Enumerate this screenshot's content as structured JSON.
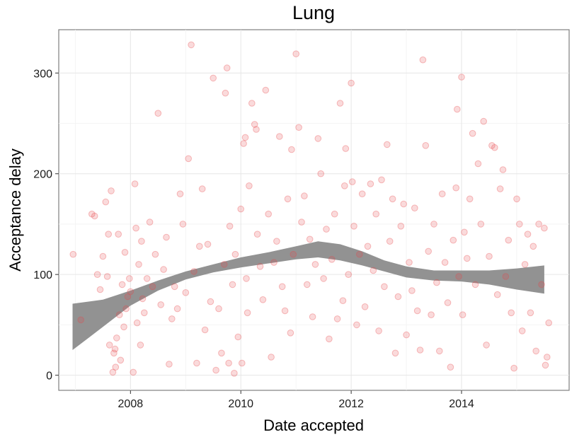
{
  "chart_data": {
    "type": "scatter",
    "title": "Lung",
    "xlabel": "Date accepted",
    "ylabel": "Acceptance delay",
    "xlim": [
      2006.7,
      2015.95
    ],
    "ylim": [
      -15,
      343
    ],
    "x_ticks": [
      2008,
      2010,
      2012,
      2014
    ],
    "y_ticks": [
      0,
      100,
      200,
      300
    ],
    "grid": true,
    "legend": "none",
    "point_color": "#e8474b",
    "band_color": "#8c8c8c",
    "smooth": {
      "x": [
        2006.95,
        2007.5,
        2008.0,
        2008.5,
        2009.0,
        2009.5,
        2010.0,
        2010.5,
        2011.0,
        2011.4,
        2011.8,
        2012.2,
        2012.6,
        2013.0,
        2013.5,
        2014.0,
        2014.5,
        2015.0,
        2015.5
      ],
      "lower": [
        25,
        48,
        69,
        84,
        95,
        102,
        107,
        111,
        115,
        117,
        114,
        109,
        103,
        97,
        94,
        93,
        90,
        85,
        81
      ],
      "upper": [
        71,
        75,
        84,
        94,
        103,
        110,
        117,
        122,
        128,
        133,
        130,
        123,
        114,
        108,
        104,
        104,
        104,
        106,
        109
      ]
    },
    "points": [
      [
        2006.96,
        120
      ],
      [
        2007.1,
        55
      ],
      [
        2007.3,
        160
      ],
      [
        2007.35,
        158
      ],
      [
        2007.4,
        100
      ],
      [
        2007.45,
        85
      ],
      [
        2007.5,
        118
      ],
      [
        2007.55,
        172
      ],
      [
        2007.58,
        98
      ],
      [
        2007.6,
        140
      ],
      [
        2007.62,
        30
      ],
      [
        2007.65,
        183
      ],
      [
        2007.68,
        3
      ],
      [
        2007.7,
        22
      ],
      [
        2007.72,
        26
      ],
      [
        2007.73,
        8
      ],
      [
        2007.75,
        37
      ],
      [
        2007.78,
        140
      ],
      [
        2007.8,
        60
      ],
      [
        2007.82,
        15
      ],
      [
        2007.85,
        90
      ],
      [
        2007.88,
        48
      ],
      [
        2007.9,
        122
      ],
      [
        2007.92,
        66
      ],
      [
        2007.95,
        78
      ],
      [
        2007.98,
        96
      ],
      [
        2008.0,
        83
      ],
      [
        2008.05,
        3
      ],
      [
        2008.08,
        190
      ],
      [
        2008.1,
        146
      ],
      [
        2008.12,
        52
      ],
      [
        2008.15,
        110
      ],
      [
        2008.18,
        30
      ],
      [
        2008.2,
        133
      ],
      [
        2008.22,
        76
      ],
      [
        2008.25,
        62
      ],
      [
        2008.3,
        96
      ],
      [
        2008.35,
        152
      ],
      [
        2008.4,
        88
      ],
      [
        2008.45,
        120
      ],
      [
        2008.5,
        260
      ],
      [
        2008.55,
        70
      ],
      [
        2008.6,
        105
      ],
      [
        2008.65,
        137
      ],
      [
        2008.7,
        11
      ],
      [
        2008.75,
        56
      ],
      [
        2008.8,
        88
      ],
      [
        2008.85,
        66
      ],
      [
        2008.9,
        180
      ],
      [
        2008.95,
        150
      ],
      [
        2009.0,
        82
      ],
      [
        2009.05,
        215
      ],
      [
        2009.1,
        328
      ],
      [
        2009.15,
        103
      ],
      [
        2009.2,
        12
      ],
      [
        2009.25,
        128
      ],
      [
        2009.3,
        185
      ],
      [
        2009.35,
        45
      ],
      [
        2009.4,
        130
      ],
      [
        2009.45,
        73
      ],
      [
        2009.5,
        295
      ],
      [
        2009.55,
        5
      ],
      [
        2009.6,
        66
      ],
      [
        2009.65,
        22
      ],
      [
        2009.7,
        110
      ],
      [
        2009.72,
        280
      ],
      [
        2009.75,
        305
      ],
      [
        2009.78,
        12
      ],
      [
        2009.8,
        148
      ],
      [
        2009.85,
        90
      ],
      [
        2009.88,
        2
      ],
      [
        2009.9,
        120
      ],
      [
        2009.95,
        38
      ],
      [
        2010.0,
        165
      ],
      [
        2010.02,
        12
      ],
      [
        2010.05,
        230
      ],
      [
        2010.08,
        236
      ],
      [
        2010.1,
        96
      ],
      [
        2010.12,
        62
      ],
      [
        2010.15,
        188
      ],
      [
        2010.2,
        270
      ],
      [
        2010.25,
        249
      ],
      [
        2010.28,
        244
      ],
      [
        2010.3,
        140
      ],
      [
        2010.35,
        108
      ],
      [
        2010.4,
        75
      ],
      [
        2010.45,
        283
      ],
      [
        2010.5,
        160
      ],
      [
        2010.55,
        18
      ],
      [
        2010.6,
        112
      ],
      [
        2010.65,
        133
      ],
      [
        2010.7,
        237
      ],
      [
        2010.75,
        88
      ],
      [
        2010.8,
        64
      ],
      [
        2010.85,
        175
      ],
      [
        2010.9,
        42
      ],
      [
        2010.92,
        224
      ],
      [
        2010.95,
        120
      ],
      [
        2011.0,
        319
      ],
      [
        2011.05,
        246
      ],
      [
        2011.1,
        152
      ],
      [
        2011.15,
        178
      ],
      [
        2011.2,
        90
      ],
      [
        2011.25,
        135
      ],
      [
        2011.3,
        58
      ],
      [
        2011.35,
        110
      ],
      [
        2011.4,
        235
      ],
      [
        2011.45,
        200
      ],
      [
        2011.5,
        96
      ],
      [
        2011.55,
        145
      ],
      [
        2011.6,
        36
      ],
      [
        2011.65,
        115
      ],
      [
        2011.7,
        160
      ],
      [
        2011.75,
        56
      ],
      [
        2011.8,
        270
      ],
      [
        2011.85,
        74
      ],
      [
        2011.88,
        188
      ],
      [
        2011.9,
        225
      ],
      [
        2011.95,
        100
      ],
      [
        2012.0,
        290
      ],
      [
        2012.02,
        192
      ],
      [
        2012.05,
        148
      ],
      [
        2012.1,
        50
      ],
      [
        2012.15,
        120
      ],
      [
        2012.2,
        180
      ],
      [
        2012.25,
        68
      ],
      [
        2012.3,
        128
      ],
      [
        2012.35,
        190
      ],
      [
        2012.4,
        104
      ],
      [
        2012.45,
        160
      ],
      [
        2012.5,
        44
      ],
      [
        2012.55,
        194
      ],
      [
        2012.6,
        88
      ],
      [
        2012.65,
        229
      ],
      [
        2012.7,
        133
      ],
      [
        2012.75,
        175
      ],
      [
        2012.8,
        22
      ],
      [
        2012.85,
        78
      ],
      [
        2012.9,
        148
      ],
      [
        2012.95,
        170
      ],
      [
        2013.0,
        40
      ],
      [
        2013.05,
        112
      ],
      [
        2013.1,
        84
      ],
      [
        2013.15,
        166
      ],
      [
        2013.2,
        64
      ],
      [
        2013.25,
        25
      ],
      [
        2013.3,
        313
      ],
      [
        2013.35,
        228
      ],
      [
        2013.4,
        123
      ],
      [
        2013.45,
        60
      ],
      [
        2013.5,
        150
      ],
      [
        2013.55,
        92
      ],
      [
        2013.6,
        24
      ],
      [
        2013.65,
        180
      ],
      [
        2013.7,
        112
      ],
      [
        2013.75,
        72
      ],
      [
        2013.8,
        8
      ],
      [
        2013.85,
        134
      ],
      [
        2013.9,
        186
      ],
      [
        2013.92,
        264
      ],
      [
        2013.95,
        98
      ],
      [
        2014.0,
        296
      ],
      [
        2014.02,
        60
      ],
      [
        2014.05,
        142
      ],
      [
        2014.1,
        116
      ],
      [
        2014.15,
        175
      ],
      [
        2014.2,
        240
      ],
      [
        2014.25,
        90
      ],
      [
        2014.3,
        210
      ],
      [
        2014.35,
        150
      ],
      [
        2014.4,
        252
      ],
      [
        2014.45,
        30
      ],
      [
        2014.5,
        118
      ],
      [
        2014.55,
        228
      ],
      [
        2014.6,
        226
      ],
      [
        2014.65,
        80
      ],
      [
        2014.7,
        185
      ],
      [
        2014.75,
        204
      ],
      [
        2014.8,
        98
      ],
      [
        2014.85,
        134
      ],
      [
        2014.9,
        62
      ],
      [
        2014.95,
        7
      ],
      [
        2015.0,
        175
      ],
      [
        2015.05,
        150
      ],
      [
        2015.1,
        44
      ],
      [
        2015.15,
        110
      ],
      [
        2015.2,
        140
      ],
      [
        2015.25,
        62
      ],
      [
        2015.3,
        128
      ],
      [
        2015.35,
        24
      ],
      [
        2015.4,
        150
      ],
      [
        2015.45,
        90
      ],
      [
        2015.5,
        146
      ],
      [
        2015.52,
        10
      ],
      [
        2015.55,
        18
      ],
      [
        2015.58,
        52
      ]
    ]
  }
}
